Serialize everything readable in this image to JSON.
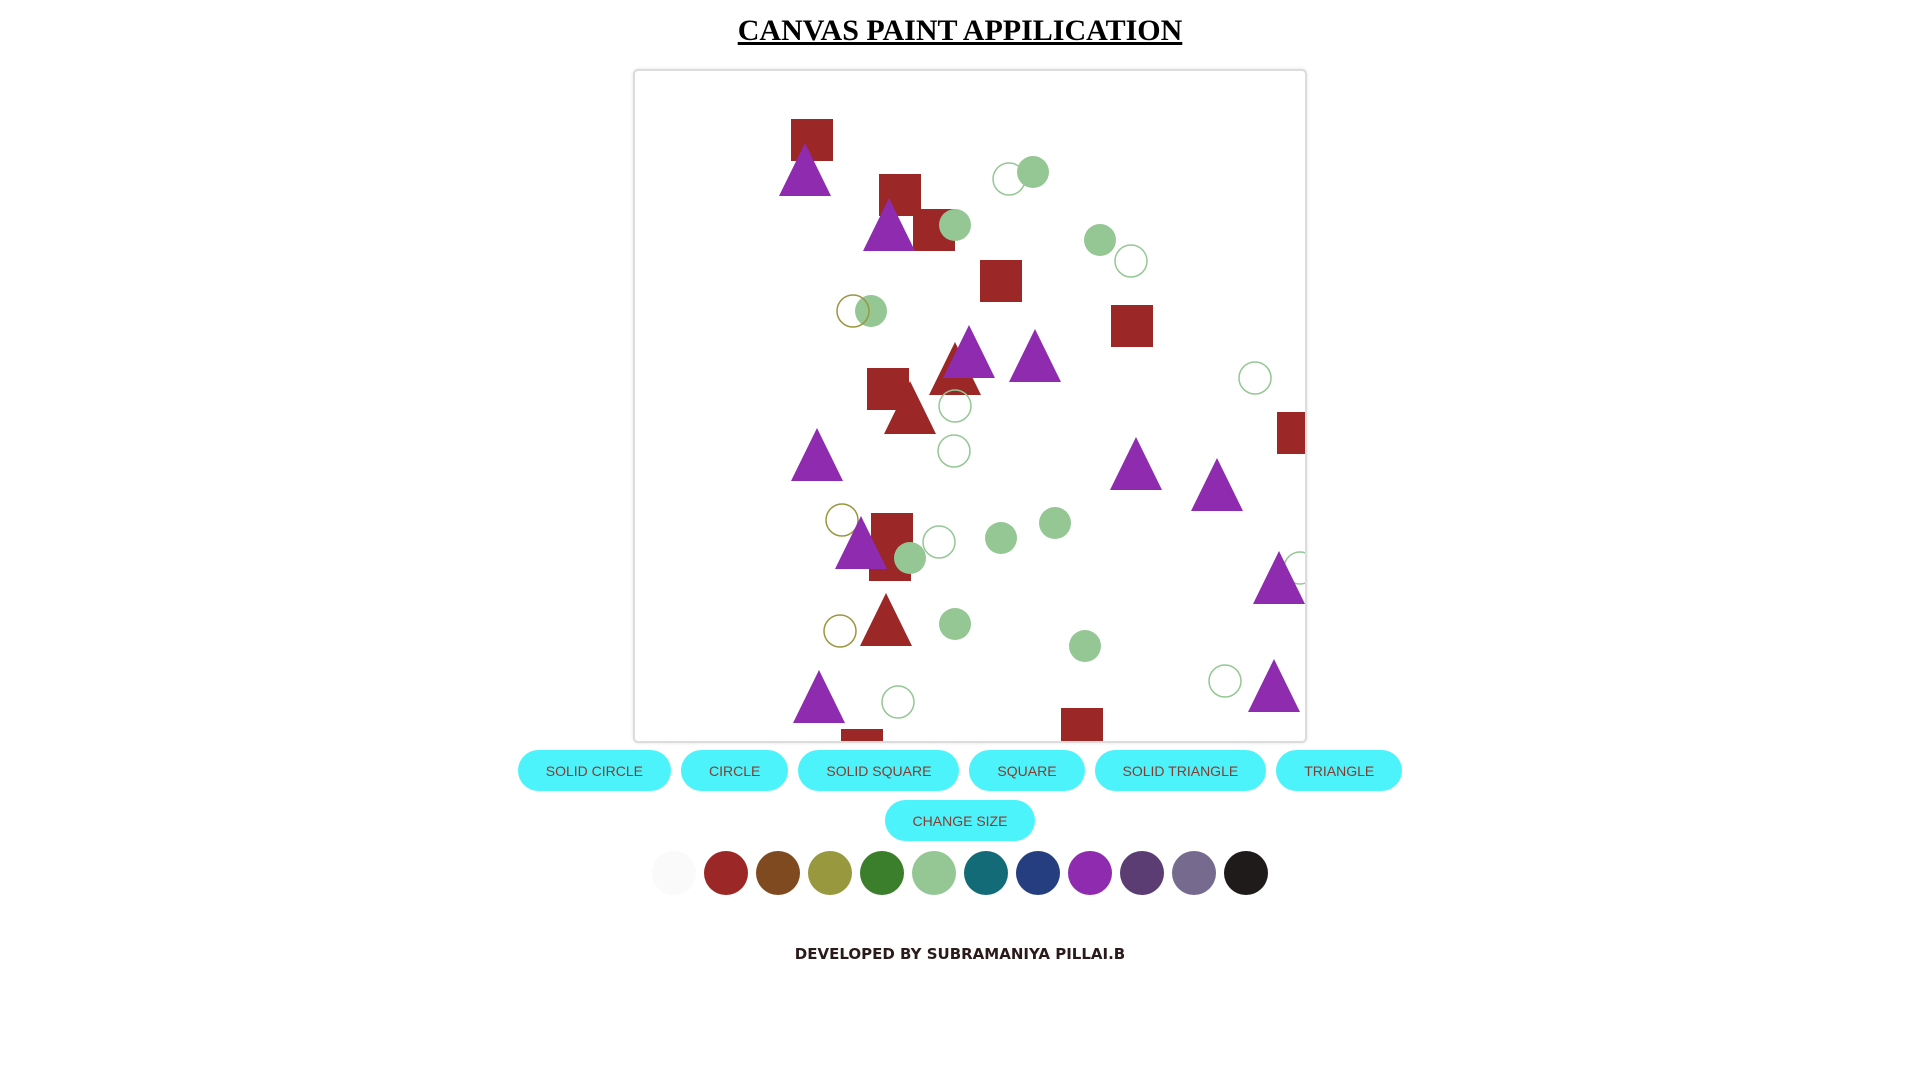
{
  "app": {
    "title": "CANVAS PAINT APPILICATION"
  },
  "buttons": {
    "solid_circle": "SOLID CIRCLE",
    "circle": "CIRCLE",
    "solid_square": "SOLID SQUARE",
    "square": "SQUARE",
    "solid_triangle": "SOLID TRIANGLE",
    "triangle": "TRIANGLE",
    "change_size": "CHANGE SIZE"
  },
  "palette": [
    {
      "name": "white",
      "color": "#fafafa"
    },
    {
      "name": "red",
      "color": "#9b2727"
    },
    {
      "name": "brown",
      "color": "#7f4a1f"
    },
    {
      "name": "olive",
      "color": "#98983f"
    },
    {
      "name": "green",
      "color": "#3b7e2b"
    },
    {
      "name": "light-green",
      "color": "#94c794"
    },
    {
      "name": "teal",
      "color": "#136b77"
    },
    {
      "name": "navy",
      "color": "#243e80"
    },
    {
      "name": "purple",
      "color": "#8e2bae"
    },
    {
      "name": "dark-purple",
      "color": "#5c3d73"
    },
    {
      "name": "grey-purple",
      "color": "#766a8f"
    },
    {
      "name": "black",
      "color": "#1f1b1b"
    }
  ],
  "footer": {
    "credit": "DEVELOPED BY SUBRAMANIYA PILLAI.B"
  }
}
